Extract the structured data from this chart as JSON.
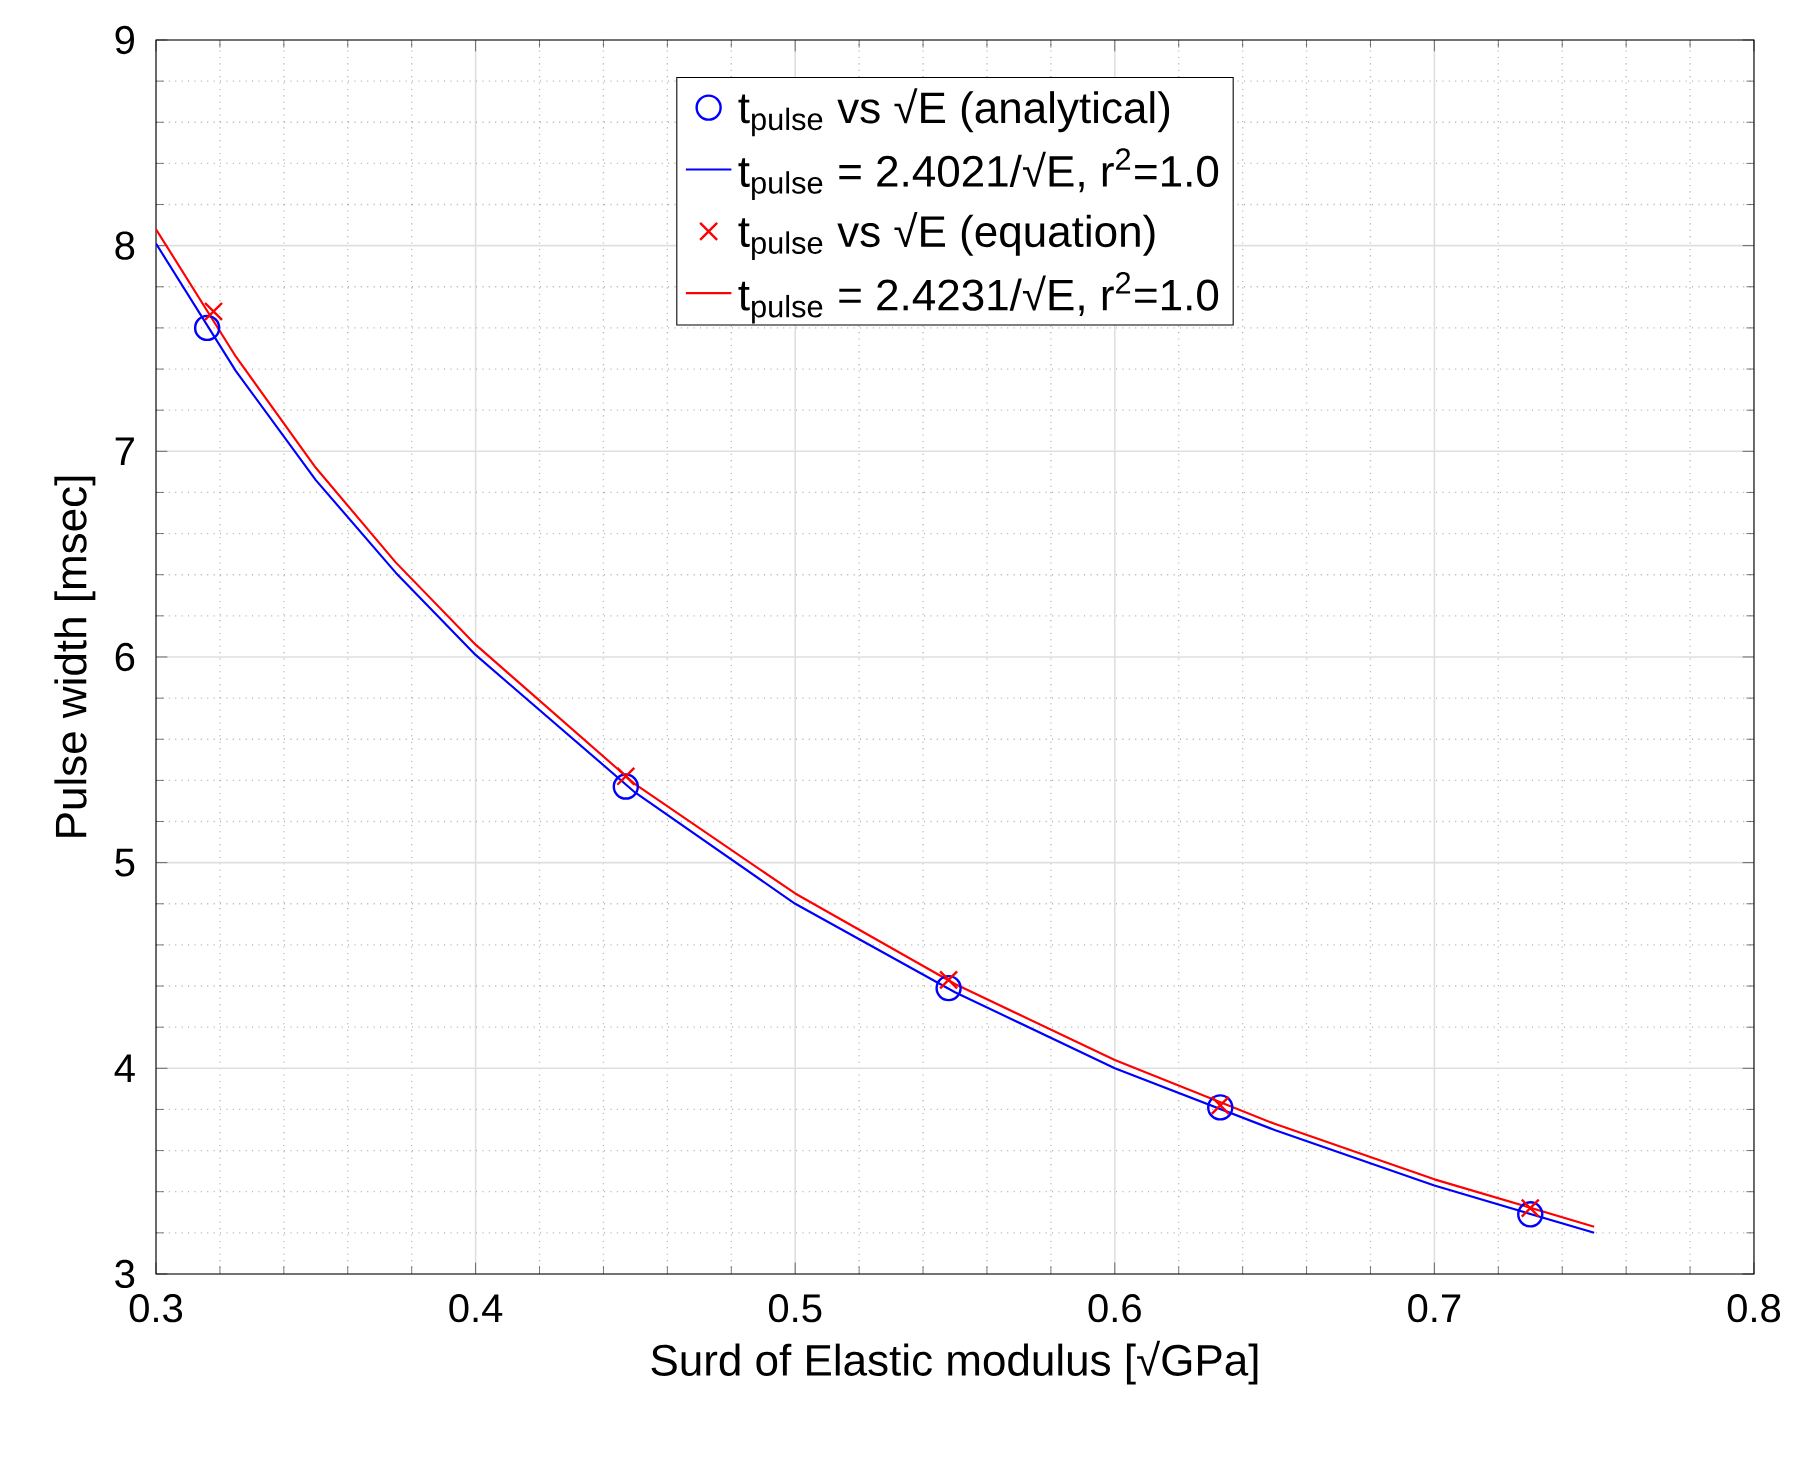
{
  "chart_data": {
    "type": "line",
    "xlabel": "Surd of Elastic modulus [√GPa]",
    "ylabel": "Pulse width [msec]",
    "xlim": [
      0.3,
      0.8
    ],
    "xticks": [
      0.3,
      0.4,
      0.5,
      0.6,
      0.7,
      0.8
    ],
    "ylim": [
      3,
      9
    ],
    "yticks": [
      3,
      4,
      5,
      6,
      7,
      8,
      9
    ],
    "grid": true,
    "legend": "top",
    "series": [
      {
        "name": "t$_{pulse}$ vs √E (analytical)",
        "type": "scatter",
        "marker": "circle",
        "color": "#0000ff",
        "x": [
          0.316,
          0.447,
          0.548,
          0.633,
          0.73
        ],
        "values": [
          7.6,
          5.37,
          4.39,
          3.81,
          3.29
        ]
      },
      {
        "name": "t$_{pulse}$ = 2.4021/√E, r$^{2}$=1.0",
        "marker": "none",
        "color": "#0000ff",
        "x": [
          0.3,
          0.325,
          0.35,
          0.375,
          0.4,
          0.45,
          0.5,
          0.55,
          0.6,
          0.65,
          0.7,
          0.75
        ],
        "values": [
          8.01,
          7.39,
          6.86,
          6.41,
          6.01,
          5.34,
          4.8,
          4.37,
          4.0,
          3.7,
          3.43,
          3.2
        ]
      },
      {
        "name": "t$_{pulse}$ vs √E (equation)",
        "type": "scatter",
        "marker": "cross",
        "color": "#ff0000",
        "x": [
          0.318,
          0.447,
          0.548,
          0.633,
          0.73
        ],
        "values": [
          7.68,
          5.42,
          4.43,
          3.82,
          3.32
        ]
      },
      {
        "name": "t$_{pulse}$ = 2.4231/√E, r$^{2}$=1.0",
        "marker": "none",
        "color": "#ff0000",
        "x": [
          0.3,
          0.325,
          0.35,
          0.375,
          0.4,
          0.45,
          0.5,
          0.55,
          0.6,
          0.65,
          0.7,
          0.75
        ],
        "values": [
          8.08,
          7.46,
          6.92,
          6.46,
          6.06,
          5.38,
          4.85,
          4.41,
          4.04,
          3.73,
          3.46,
          3.23
        ]
      }
    ]
  }
}
